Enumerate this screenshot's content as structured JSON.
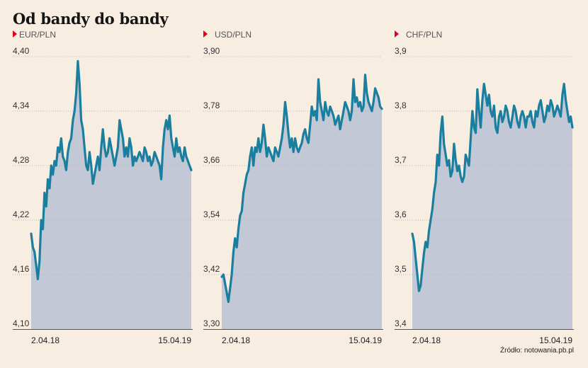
{
  "title": "Od bandy do bandy",
  "source": "Źródło: notowania.pb.pl",
  "colors": {
    "background": "#f8ede1",
    "fill": "#c3c8d6",
    "line": "#1a7f9f",
    "marker": "#e3001b",
    "grid": "#b9b9b9"
  },
  "chart_data": [
    {
      "type": "area",
      "title": "EUR/PLN",
      "x_start": "2.04.18",
      "x_end": "15.04.19",
      "x_labels": [
        "2.04.18",
        "15.04.19"
      ],
      "ylim": [
        4.1,
        4.4
      ],
      "y_ticks": [
        "4,10",
        "4,16",
        "4,22",
        "4,28",
        "4,34",
        "4,40"
      ],
      "grid": true,
      "values": [
        4.205,
        4.19,
        4.185,
        4.17,
        4.155,
        4.175,
        4.22,
        4.21,
        4.25,
        4.235,
        4.265,
        4.255,
        4.28,
        4.27,
        4.285,
        4.28,
        4.3,
        4.295,
        4.31,
        4.29,
        4.285,
        4.275,
        4.295,
        4.305,
        4.31,
        4.33,
        4.34,
        4.36,
        4.395,
        4.37,
        4.33,
        4.32,
        4.3,
        4.28,
        4.275,
        4.295,
        4.28,
        4.26,
        4.27,
        4.28,
        4.29,
        4.275,
        4.3,
        4.32,
        4.3,
        4.29,
        4.295,
        4.31,
        4.3,
        4.29,
        4.28,
        4.29,
        4.3,
        4.33,
        4.32,
        4.31,
        4.29,
        4.3,
        4.29,
        4.31,
        4.3,
        4.28,
        4.29,
        4.285,
        4.29,
        4.295,
        4.29,
        4.285,
        4.3,
        4.295,
        4.285,
        4.29,
        4.28,
        4.285,
        4.295,
        4.29,
        4.285,
        4.28,
        4.265,
        4.3,
        4.32,
        4.33,
        4.32,
        4.335,
        4.31,
        4.3,
        4.29,
        4.31,
        4.295,
        4.3,
        4.29,
        4.285,
        4.3,
        4.29,
        4.285,
        4.28,
        4.275
      ]
    },
    {
      "type": "area",
      "title": "USD/PLN",
      "x_start": "2.04.18",
      "x_end": "15.04.19",
      "x_labels": [
        "2.04.18",
        "15.04.19"
      ],
      "ylim": [
        3.3,
        3.9
      ],
      "y_ticks": [
        "3,30",
        "3,42",
        "3,54",
        "3,66",
        "3,78",
        "3,90"
      ],
      "grid": true,
      "values": [
        3.415,
        3.42,
        3.4,
        3.38,
        3.36,
        3.39,
        3.42,
        3.47,
        3.5,
        3.48,
        3.52,
        3.55,
        3.56,
        3.6,
        3.62,
        3.64,
        3.65,
        3.68,
        3.7,
        3.66,
        3.7,
        3.69,
        3.72,
        3.69,
        3.71,
        3.75,
        3.72,
        3.68,
        3.7,
        3.69,
        3.68,
        3.67,
        3.7,
        3.69,
        3.68,
        3.7,
        3.72,
        3.75,
        3.8,
        3.77,
        3.73,
        3.7,
        3.72,
        3.69,
        3.72,
        3.7,
        3.69,
        3.7,
        3.71,
        3.73,
        3.74,
        3.72,
        3.71,
        3.75,
        3.79,
        3.77,
        3.78,
        3.76,
        3.85,
        3.8,
        3.78,
        3.76,
        3.8,
        3.78,
        3.77,
        3.79,
        3.78,
        3.77,
        3.75,
        3.76,
        3.77,
        3.74,
        3.76,
        3.78,
        3.8,
        3.79,
        3.78,
        3.76,
        3.78,
        3.85,
        3.8,
        3.81,
        3.79,
        3.8,
        3.78,
        3.79,
        3.86,
        3.82,
        3.8,
        3.79,
        3.78,
        3.8,
        3.83,
        3.82,
        3.81,
        3.79,
        3.785
      ]
    },
    {
      "type": "area",
      "title": "CHF/PLN",
      "x_start": "2.04.18",
      "x_end": "15.04.19",
      "x_labels": [
        "2.04.18",
        "15.04.19"
      ],
      "ylim": [
        3.4,
        3.9
      ],
      "y_ticks": [
        "3,4",
        "3,5",
        "3,6",
        "3,7",
        "3,8",
        "3,9"
      ],
      "grid": true,
      "values": [
        3.575,
        3.56,
        3.53,
        3.5,
        3.47,
        3.48,
        3.51,
        3.54,
        3.56,
        3.55,
        3.58,
        3.6,
        3.62,
        3.65,
        3.67,
        3.72,
        3.7,
        3.76,
        3.79,
        3.74,
        3.72,
        3.7,
        3.71,
        3.68,
        3.69,
        3.74,
        3.71,
        3.69,
        3.7,
        3.68,
        3.67,
        3.68,
        3.72,
        3.71,
        3.7,
        3.75,
        3.8,
        3.77,
        3.76,
        3.84,
        3.8,
        3.77,
        3.82,
        3.85,
        3.83,
        3.81,
        3.83,
        3.8,
        3.79,
        3.81,
        3.77,
        3.76,
        3.79,
        3.8,
        3.78,
        3.79,
        3.81,
        3.8,
        3.78,
        3.77,
        3.79,
        3.81,
        3.8,
        3.78,
        3.77,
        3.79,
        3.8,
        3.79,
        3.77,
        3.79,
        3.79,
        3.8,
        3.78,
        3.77,
        3.8,
        3.79,
        3.81,
        3.82,
        3.8,
        3.78,
        3.79,
        3.81,
        3.8,
        3.82,
        3.81,
        3.79,
        3.8,
        3.81,
        3.8,
        3.79,
        3.83,
        3.85,
        3.82,
        3.8,
        3.78,
        3.79,
        3.77
      ]
    }
  ]
}
